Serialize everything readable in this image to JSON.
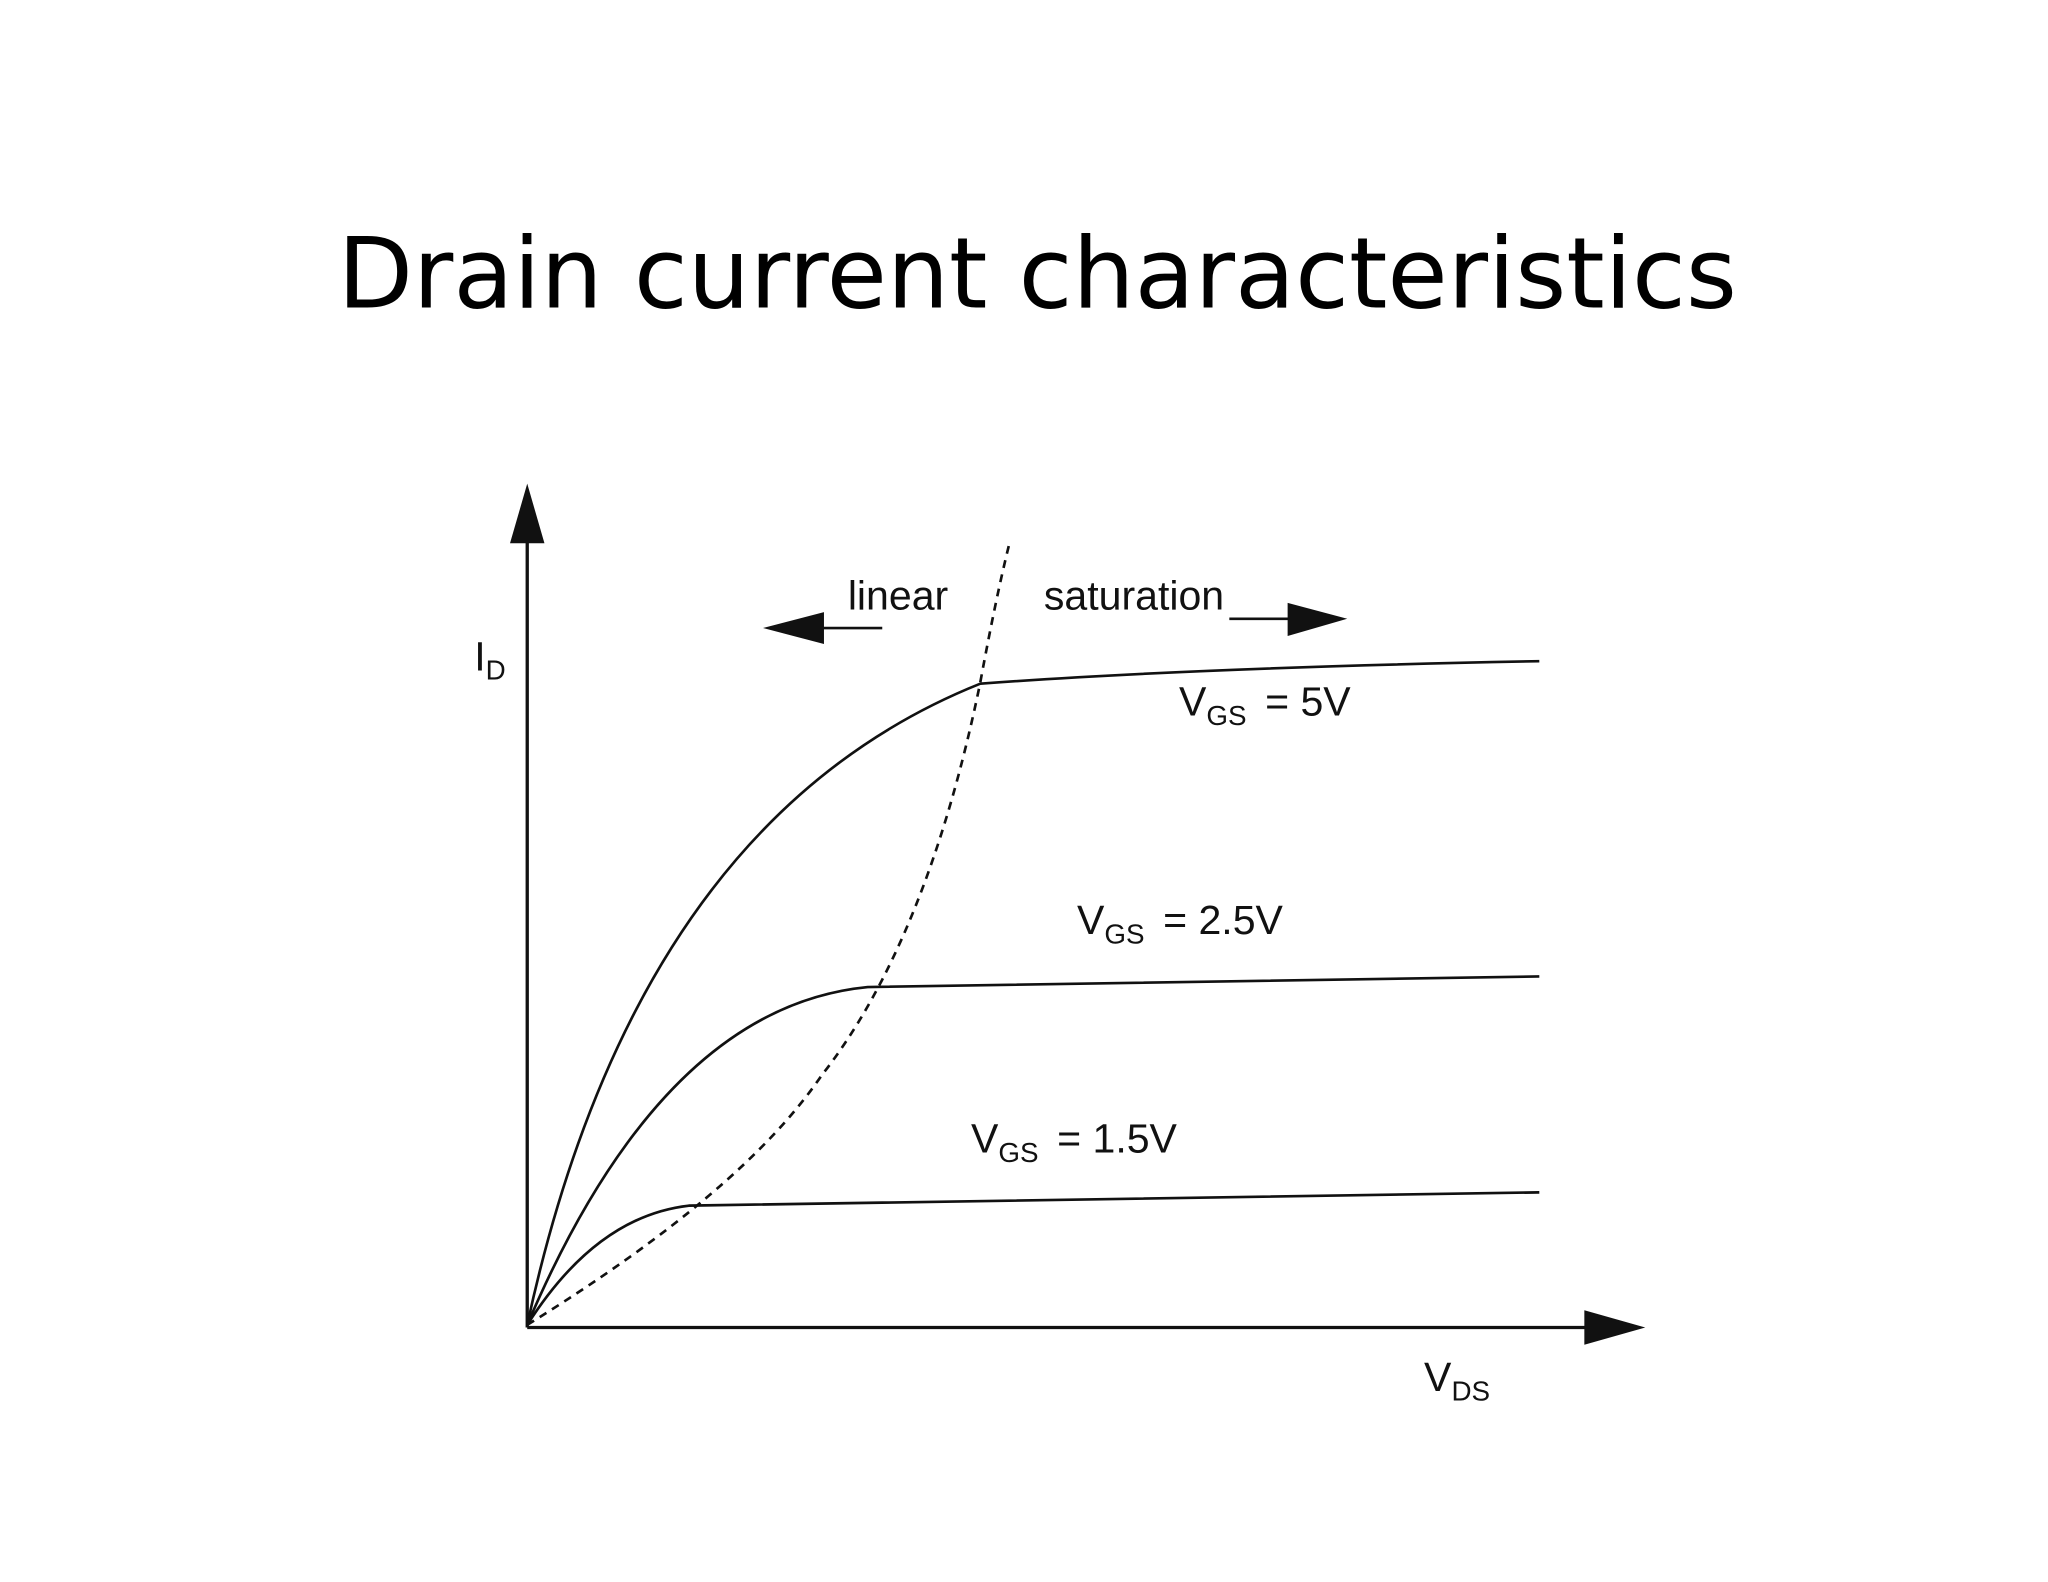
{
  "title": "Drain current characteristics",
  "axes": {
    "y": {
      "symbol": "I",
      "subscript": "D"
    },
    "x": {
      "symbol": "V",
      "subscript": "DS"
    }
  },
  "regions": {
    "left": "linear",
    "right": "saturation"
  },
  "curves": [
    {
      "symbol": "V",
      "subscript": "GS",
      "value": "= 5V"
    },
    {
      "symbol": "V",
      "subscript": "GS",
      "value": "= 2.5V"
    },
    {
      "symbol": "V",
      "subscript": "GS",
      "value": "= 1.5V"
    }
  ]
}
